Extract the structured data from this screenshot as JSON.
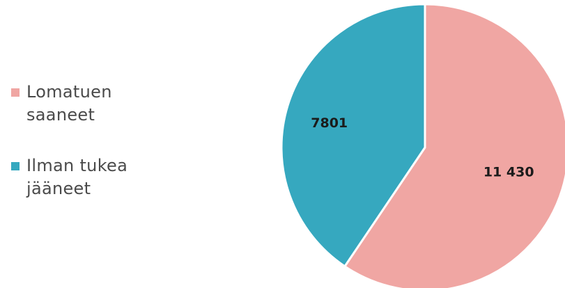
{
  "chart_data": {
    "type": "pie",
    "categories": [
      "Lomatuen saaneet",
      "Ilman tukea jääneet"
    ],
    "values": [
      11430,
      7801
    ],
    "value_labels": [
      "11 430",
      "7801"
    ],
    "colors": [
      "#f0a6a3",
      "#36a8bf"
    ],
    "start_angle": "12 o'clock",
    "direction": "clockwise",
    "legend_position": "left",
    "title": ""
  }
}
